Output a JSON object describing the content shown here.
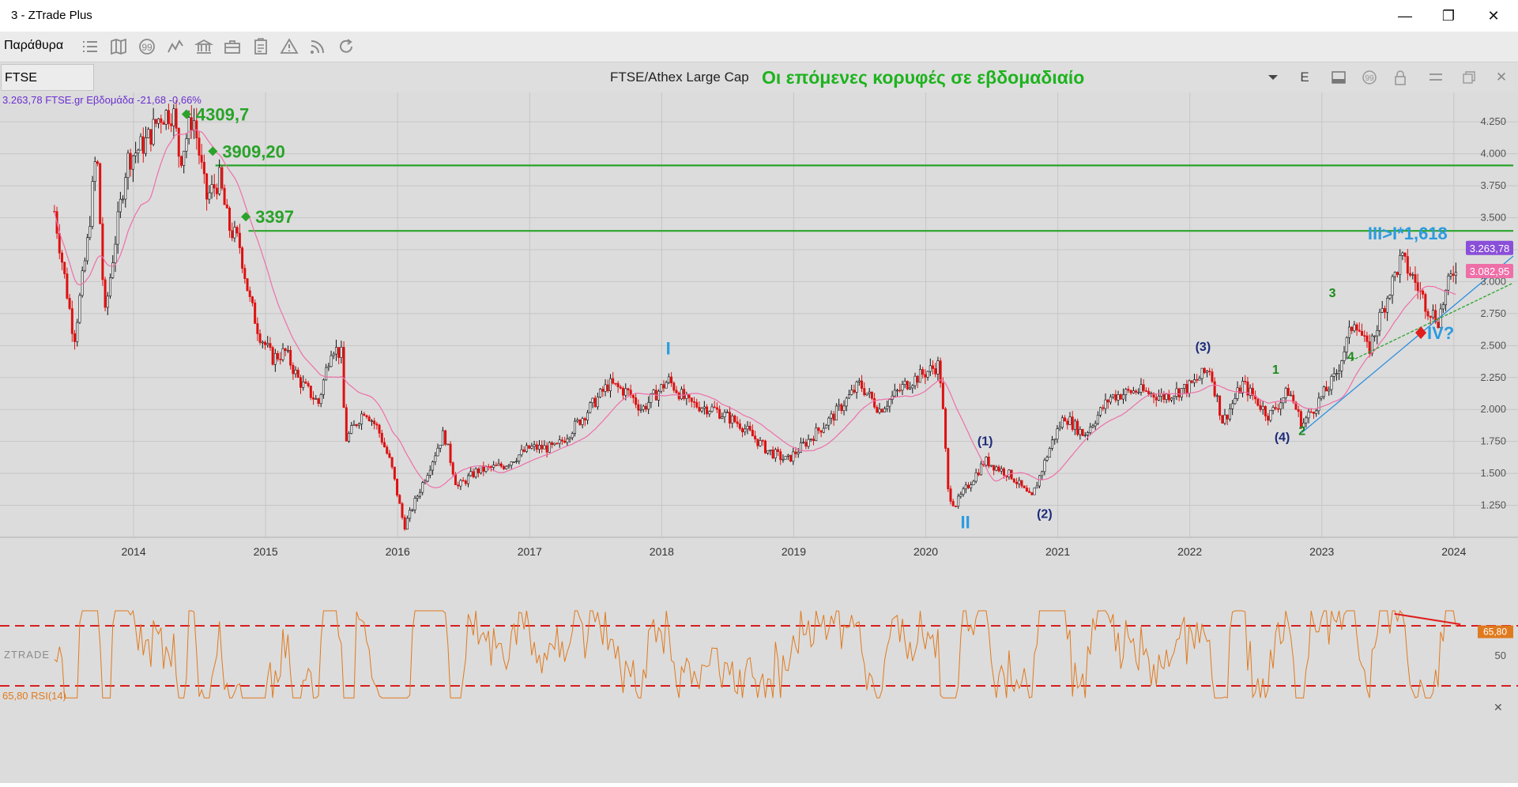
{
  "window": {
    "title": "3 - ZTrade Plus",
    "minimize_glyph": "—",
    "restore_glyph": "❐",
    "close_glyph": "✕"
  },
  "menubar": {
    "label": "Παράθυρα",
    "icons": [
      "list-icon",
      "map-icon",
      "quote-icon",
      "chart-line-icon",
      "bank-icon",
      "briefcase-icon",
      "clipboard-icon",
      "warning-icon",
      "rss-icon",
      "refresh-icon"
    ]
  },
  "chart_header": {
    "symbol": "FTSE",
    "title": "FTSE/Athex Large Cap",
    "headline": "Οι επόμενες κορυφές σε εβδομαδιαίο",
    "e_label": "E",
    "info": "3.263,78 FTSE.gr Εβδομάδα -21,68 -0,66%",
    "info_color": "#6a2fd0",
    "change_color": "#cc1111"
  },
  "colors": {
    "up": "#111111",
    "down": "#dd1111",
    "ma": "#ee6fa8",
    "level": "#29a329",
    "accent_blue": "#2b9be0",
    "rsi": "#e07a1e"
  },
  "watermark": "ZTRADE",
  "chart_data": {
    "type": "candlestick",
    "timeframe": "weekly",
    "x_ticks": [
      "2014",
      "2015",
      "2016",
      "2017",
      "2018",
      "2019",
      "2020",
      "2021",
      "2022",
      "2023",
      "2024"
    ],
    "y_ticks": [
      "4.250",
      "4.000",
      "3.750",
      "3.500",
      "3.250",
      "3.000",
      "2.750",
      "2.500",
      "2.250",
      "2.000",
      "1.750",
      "1.500",
      "1.250"
    ],
    "ylim": [
      1000,
      4480
    ],
    "price_path": [
      [
        2013.4,
        3550
      ],
      [
        2013.55,
        2550
      ],
      [
        2013.65,
        3300
      ],
      [
        2013.72,
        4050
      ],
      [
        2013.78,
        2700
      ],
      [
        2013.85,
        3250
      ],
      [
        2013.95,
        3950
      ],
      [
        2014.1,
        4100
      ],
      [
        2014.2,
        4300
      ],
      [
        2014.3,
        4330
      ],
      [
        2014.35,
        3950
      ],
      [
        2014.45,
        4310
      ],
      [
        2014.55,
        3650
      ],
      [
        2014.65,
        3800
      ],
      [
        2014.72,
        3430
      ],
      [
        2014.8,
        3300
      ],
      [
        2014.88,
        2850
      ],
      [
        2014.95,
        2600
      ],
      [
        2015.05,
        2400
      ],
      [
        2015.15,
        2450
      ],
      [
        2015.25,
        2230
      ],
      [
        2015.4,
        2050
      ],
      [
        2015.5,
        2500
      ],
      [
        2015.58,
        2420
      ],
      [
        2015.6,
        1750
      ],
      [
        2015.75,
        2000
      ],
      [
        2015.85,
        1850
      ],
      [
        2015.95,
        1570
      ],
      [
        2016.05,
        1080
      ],
      [
        2016.2,
        1450
      ],
      [
        2016.35,
        1820
      ],
      [
        2016.45,
        1390
      ],
      [
        2016.6,
        1520
      ],
      [
        2016.8,
        1560
      ],
      [
        2017.0,
        1700
      ],
      [
        2017.2,
        1700
      ],
      [
        2017.4,
        1940
      ],
      [
        2017.6,
        2200
      ],
      [
        2017.75,
        2130
      ],
      [
        2017.85,
        2000
      ],
      [
        2018.05,
        2230
      ],
      [
        2018.2,
        2050
      ],
      [
        2018.4,
        2000
      ],
      [
        2018.6,
        1880
      ],
      [
        2018.8,
        1680
      ],
      [
        2018.95,
        1600
      ],
      [
        2019.1,
        1750
      ],
      [
        2019.3,
        1950
      ],
      [
        2019.5,
        2200
      ],
      [
        2019.65,
        2000
      ],
      [
        2019.85,
        2200
      ],
      [
        2020.1,
        2350
      ],
      [
        2020.12,
        2150
      ],
      [
        2020.17,
        1350
      ],
      [
        2020.22,
        1250
      ],
      [
        2020.35,
        1450
      ],
      [
        2020.45,
        1600
      ],
      [
        2020.65,
        1480
      ],
      [
        2020.8,
        1300
      ],
      [
        2020.95,
        1730
      ],
      [
        2021.05,
        1950
      ],
      [
        2021.2,
        1800
      ],
      [
        2021.4,
        2100
      ],
      [
        2021.6,
        2150
      ],
      [
        2021.8,
        2100
      ],
      [
        2022.0,
        2180
      ],
      [
        2022.15,
        2320
      ],
      [
        2022.25,
        1900
      ],
      [
        2022.4,
        2200
      ],
      [
        2022.6,
        1950
      ],
      [
        2022.75,
        2150
      ],
      [
        2022.85,
        1880
      ],
      [
        2023.0,
        2100
      ],
      [
        2023.1,
        2250
      ],
      [
        2023.25,
        2720
      ],
      [
        2023.35,
        2450
      ],
      [
        2023.5,
        2900
      ],
      [
        2023.6,
        3180
      ],
      [
        2023.68,
        3050
      ],
      [
        2023.8,
        2800
      ],
      [
        2023.88,
        2700
      ],
      [
        2023.95,
        2950
      ],
      [
        2024.02,
        3150
      ],
      [
        2024.03,
        3264
      ]
    ],
    "levels": [
      {
        "label": "4309,7",
        "value": 4309.7
      },
      {
        "label": "3909,20",
        "value": 3909.2
      },
      {
        "label": "3397",
        "value": 3397
      }
    ],
    "last_price": {
      "label": "3.263,78",
      "value": 3263.78,
      "color": "#8a4fd8"
    },
    "ma_value": {
      "label": "3.082,95",
      "value": 3082.95,
      "color": "#ee6fa8"
    },
    "annotations": [
      {
        "text": "III>I*1,618",
        "x": 2023.65,
        "y": 3330,
        "color": "#2b9be0"
      },
      {
        "text": "IV?",
        "x": 2023.9,
        "y": 2550,
        "color": "#2b9be0"
      },
      {
        "text": "I",
        "x": 2018.05,
        "y": 2430,
        "color": "#2b9be0"
      },
      {
        "text": "II",
        "x": 2020.3,
        "y": 1070,
        "color": "#2b9be0"
      },
      {
        "text": "(1)",
        "x": 2020.45,
        "y": 1720,
        "color": "#1c2a7a"
      },
      {
        "text": "(2)",
        "x": 2020.9,
        "y": 1150,
        "color": "#1c2a7a"
      },
      {
        "text": "(3)",
        "x": 2022.1,
        "y": 2460,
        "color": "#1c2a7a"
      },
      {
        "text": "(4)",
        "x": 2022.7,
        "y": 1750,
        "color": "#1c2a7a"
      },
      {
        "text": "1",
        "x": 2022.65,
        "y": 2280,
        "color": "#1b8a1b"
      },
      {
        "text": "2",
        "x": 2022.85,
        "y": 1800,
        "color": "#1b8a1b"
      },
      {
        "text": "3",
        "x": 2023.08,
        "y": 2880,
        "color": "#1b8a1b"
      },
      {
        "text": "4",
        "x": 2023.22,
        "y": 2380,
        "color": "#1b8a1b"
      }
    ]
  },
  "rsi": {
    "label": "65,80 RSI(14)",
    "value_label": "65,80",
    "mid_label": "50",
    "close_glyph": "✕"
  }
}
